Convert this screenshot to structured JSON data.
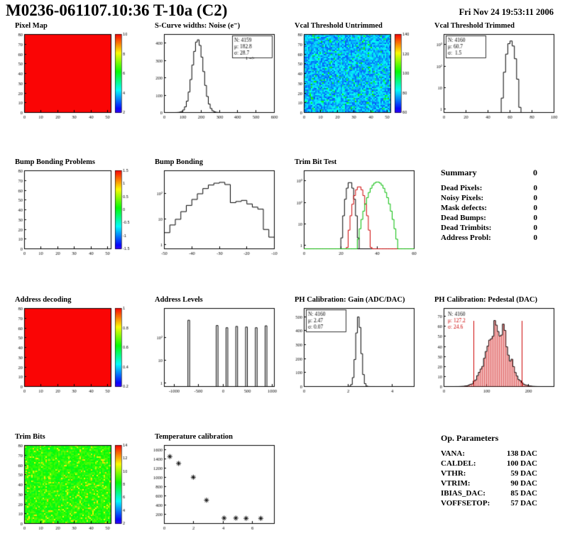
{
  "header": {
    "title": "M0236-061107.10:36 T-10a (C2)",
    "date": "Fri Nov 24 19:53:11 2006"
  },
  "summary": {
    "title": "Summary",
    "total": "0",
    "rows": [
      {
        "label": "Dead Pixels:",
        "value": "0"
      },
      {
        "label": "Noisy Pixels:",
        "value": "0"
      },
      {
        "label": "Mask defects:",
        "value": "0"
      },
      {
        "label": "Dead Bumps:",
        "value": "0"
      },
      {
        "label": "Dead Trimbits:",
        "value": "0"
      },
      {
        "label": "Address Probl:",
        "value": "0"
      }
    ]
  },
  "op_parameters": {
    "title": "Op. Parameters",
    "rows": [
      {
        "label": "VANA:",
        "value": "138 DAC"
      },
      {
        "label": "CALDEL:",
        "value": "100 DAC"
      },
      {
        "label": "VTHR:",
        "value": "59 DAC"
      },
      {
        "label": "VTRIM:",
        "value": "90 DAC"
      },
      {
        "label": "IBIAS_DAC:",
        "value": "85 DAC"
      },
      {
        "label": "VOFFSETOP:",
        "value": "57 DAC"
      }
    ]
  },
  "colors": {
    "accent_red": "#cc0000",
    "hist_green": "#00bb00",
    "map_red": "#f20c0c"
  },
  "chart_data": [
    {
      "type": "heatmap",
      "title": "Pixel Map",
      "grid": {
        "row": 0,
        "col": 0
      },
      "xrange": [
        0,
        52
      ],
      "yrange": [
        0,
        80
      ],
      "xticks": [
        0,
        10,
        20,
        30,
        40,
        50
      ],
      "yticks": [
        0,
        10,
        20,
        30,
        40,
        50,
        60,
        70,
        80
      ],
      "heat": {
        "mode": "uniform",
        "t": 1,
        "seed": 1,
        "colorbar_labels": [
          "2",
          "4",
          "6",
          "8",
          "10"
        ],
        "description": "uniform red map, all pixels responding"
      }
    },
    {
      "type": "hist",
      "title": "S-Curve widths: Noise (e⁻)",
      "grid": {
        "row": 0,
        "col": 1
      },
      "xrange": [
        0,
        600
      ],
      "yrange": [
        0,
        450
      ],
      "xticks": [
        0,
        100,
        200,
        300,
        400,
        500,
        600
      ],
      "yticks": [
        0,
        100,
        200,
        300,
        400
      ],
      "gauss": {
        "n": 4159,
        "mean": 182.8,
        "sigma": 28.7,
        "peak": 420,
        "draw_sigma": 30,
        "nbins": 60
      },
      "stats": {
        "pos": "right",
        "box": true,
        "lines": [
          {
            "text": "N: 4159"
          },
          {
            "text": "μ: 182.8"
          },
          {
            "text": "σ: 28.7"
          }
        ]
      },
      "annotation": {
        "text": "1 =>",
        "fx": 0.74,
        "fy": 0.33
      }
    },
    {
      "type": "heatmap",
      "title": "Vcal Threshold Untrimmed",
      "grid": {
        "row": 0,
        "col": 2
      },
      "xrange": [
        0,
        52
      ],
      "yrange": [
        0,
        80
      ],
      "xticks": [
        0,
        10,
        20,
        30,
        40,
        50
      ],
      "yticks": [
        0,
        10,
        20,
        30,
        40,
        50,
        60,
        70,
        80
      ],
      "heat": {
        "mode": "noise",
        "t": 0.22,
        "spread": 0.18,
        "speckle": 0.06,
        "speckle_boost": 0.25,
        "seed": 7,
        "colorbar_labels": [
          "60",
          "80",
          "100",
          "120",
          "140"
        ],
        "description": "noisy blue/cyan threshold map"
      }
    },
    {
      "type": "hist",
      "title": "Vcal Threshold Trimmed",
      "grid": {
        "row": 0,
        "col": 3
      },
      "ylog": true,
      "xrange": [
        0,
        100
      ],
      "yrange": [
        0.7,
        3000
      ],
      "xticks": [
        0,
        20,
        40,
        60,
        80,
        100
      ],
      "yticks": [
        1,
        10,
        100,
        1000
      ],
      "gauss": {
        "n": 4160,
        "mean": 60.7,
        "sigma": 1.5,
        "peak": 1500,
        "draw_sigma": 2.2,
        "nbins": 50
      },
      "stats": {
        "pos": "left",
        "box": true,
        "lines": [
          {
            "text": "N: 4160"
          },
          {
            "text": "μ: 60.7"
          },
          {
            "text": "σ:  1.5"
          }
        ]
      }
    },
    {
      "type": "heatmap",
      "title": "Bump Bonding Problems",
      "grid": {
        "row": 1,
        "col": 0
      },
      "xrange": [
        0,
        52
      ],
      "yrange": [
        0,
        80
      ],
      "xticks": [
        0,
        10,
        20,
        30,
        40,
        50
      ],
      "yticks": [
        0,
        10,
        20,
        30,
        40,
        50,
        60,
        70,
        80
      ],
      "heat": {
        "mode": "empty",
        "seed": 2,
        "colorbar_labels": [
          "-1.5",
          "-1",
          "-0.5",
          "0",
          "0.5",
          "1",
          "1.5"
        ],
        "description": "empty map, no bump bonding problems"
      }
    },
    {
      "type": "steps",
      "title": "Bump Bonding",
      "grid": {
        "row": 1,
        "col": 1
      },
      "ylog": true,
      "xrange": [
        -50,
        -10
      ],
      "yrange": [
        0.7,
        800
      ],
      "xticks": [
        -50,
        -40,
        -30,
        -20,
        -10
      ],
      "yticks": [
        1,
        10,
        100
      ],
      "steps": {
        "x0": -50,
        "binw": 2,
        "values": [
          3,
          6,
          10,
          20,
          35,
          60,
          100,
          160,
          220,
          260,
          280,
          230,
          45,
          50,
          55,
          40,
          30,
          25,
          4,
          2
        ]
      }
    },
    {
      "type": "multihist",
      "title": "Trim Bit Test",
      "grid": {
        "row": 1,
        "col": 2
      },
      "ylog": true,
      "xrange": [
        0,
        60
      ],
      "yrange": [
        0.7,
        3000
      ],
      "xticks": [
        0,
        20,
        40,
        60
      ],
      "yticks": [
        1,
        10,
        100,
        1000
      ],
      "series": [
        {
          "name": "trim-bits-black",
          "color": "#000000",
          "mean": 25,
          "sigma": 1.3,
          "peak": 900
        },
        {
          "name": "trim-bits-red",
          "color": "#cc0000",
          "mean": 30,
          "sigma": 1.8,
          "peak": 550
        },
        {
          "name": "trim-bits-green",
          "color": "#00bb00",
          "mean": 40,
          "sigma": 3.0,
          "peak": 900
        }
      ]
    },
    {
      "type": "heatmap",
      "title": "Address decoding",
      "grid": {
        "row": 2,
        "col": 0
      },
      "xrange": [
        0,
        52
      ],
      "yrange": [
        0,
        80
      ],
      "xticks": [
        0,
        10,
        20,
        30,
        40,
        50
      ],
      "yticks": [
        0,
        10,
        20,
        30,
        40,
        50,
        60,
        70,
        80
      ],
      "heat": {
        "mode": "uniform",
        "t": 1,
        "seed": 3,
        "colorbar_labels": [
          "0.2",
          "0.4",
          "0.6",
          "0.8",
          "1"
        ],
        "description": "uniform red map, all addresses decoded"
      }
    },
    {
      "type": "spikes",
      "title": "Address Levels",
      "grid": {
        "row": 2,
        "col": 1
      },
      "ylog": true,
      "xrange": [
        -1200,
        1050
      ],
      "yrange": [
        0.7,
        2000
      ],
      "xticks": [
        -1000,
        -500,
        0,
        500,
        1000
      ],
      "yticks": [
        1,
        10,
        100
      ],
      "spikes": {
        "halfwidth": 18,
        "points": [
          [
            -700,
            600
          ],
          [
            -120,
            350
          ],
          [
            80,
            280
          ],
          [
            280,
            320
          ],
          [
            480,
            300
          ],
          [
            680,
            280
          ],
          [
            880,
            340
          ]
        ]
      }
    },
    {
      "type": "hist",
      "title": "PH Calibration: Gain (ADC/DAC)",
      "grid": {
        "row": 2,
        "col": 2
      },
      "xrange": [
        0,
        5
      ],
      "yrange": [
        0,
        560
      ],
      "xticks": [
        0,
        2,
        4
      ],
      "yticks": [
        0,
        100,
        200,
        300,
        400,
        500
      ],
      "gauss": {
        "n": 4160,
        "mean": 2.47,
        "sigma": 0.07,
        "peak": 500,
        "draw_sigma": 0.12,
        "nbins": 64
      },
      "stats": {
        "pos": "left",
        "box": true,
        "lines": [
          {
            "text": "N: 4160"
          },
          {
            "text": "μ: 2.47"
          },
          {
            "text": "σ: 0.07"
          }
        ]
      }
    },
    {
      "type": "hist",
      "title": "PH Calibration: Pedestal (DAC)",
      "grid": {
        "row": 2,
        "col": 3
      },
      "xrange": [
        0,
        260
      ],
      "yrange": [
        0,
        78
      ],
      "jitter": true,
      "xticks": [
        0,
        100,
        200
      ],
      "yticks": [
        0,
        10,
        20,
        30,
        40,
        50,
        60,
        70
      ],
      "gauss": {
        "n": 4160,
        "mean": 127.2,
        "sigma": 24.6,
        "peak": 68,
        "draw_sigma": 24.6,
        "nbins": 64,
        "seed": 11
      },
      "fill": {
        "color": "rgba(225,70,70,0.40)",
        "hatch": true
      },
      "vlines": [
        {
          "x": 70,
          "color": "#cc0000"
        },
        {
          "x": 185,
          "color": "#cc0000"
        }
      ],
      "stats": {
        "pos": "left",
        "box": false,
        "lines": [
          {
            "text": "N: 4160",
            "color": "#000000"
          },
          {
            "text": "μ: 127.2",
            "color": "#cc0000"
          },
          {
            "text": "σ: 24.6",
            "color": "#cc0000"
          }
        ]
      }
    },
    {
      "type": "heatmap",
      "title": "Trim Bits",
      "grid": {
        "row": 3,
        "col": 0
      },
      "xrange": [
        0,
        52
      ],
      "yrange": [
        0,
        80
      ],
      "xticks": [
        0,
        10,
        20,
        30,
        40,
        50
      ],
      "yticks": [
        0,
        10,
        20,
        30,
        40,
        50,
        60,
        70,
        80
      ],
      "heat": {
        "mode": "noise",
        "t": 0.55,
        "spread": 0.12,
        "speckle": 0.08,
        "speckle_boost": 0.2,
        "seed": 13,
        "colorbar_labels": [
          "2",
          "4",
          "6",
          "8",
          "10",
          "12",
          "14"
        ],
        "description": "noisy green trim-bit map"
      }
    },
    {
      "type": "scatter",
      "title": "Temperature calibration",
      "grid": {
        "row": 3,
        "col": 1
      },
      "xrange": [
        0,
        7.5
      ],
      "yrange": [
        0,
        1700
      ],
      "xticks": [
        0,
        2,
        4,
        6
      ],
      "yticks": [
        200,
        400,
        600,
        800,
        1000,
        1200,
        1400,
        1600
      ],
      "marker": "asterisk",
      "points": [
        [
          0.4,
          1450
        ],
        [
          1.0,
          1300
        ],
        [
          2.0,
          1000
        ],
        [
          2.9,
          500
        ],
        [
          4.1,
          110
        ],
        [
          4.9,
          110
        ],
        [
          5.6,
          105
        ],
        [
          6.6,
          105
        ]
      ]
    }
  ]
}
